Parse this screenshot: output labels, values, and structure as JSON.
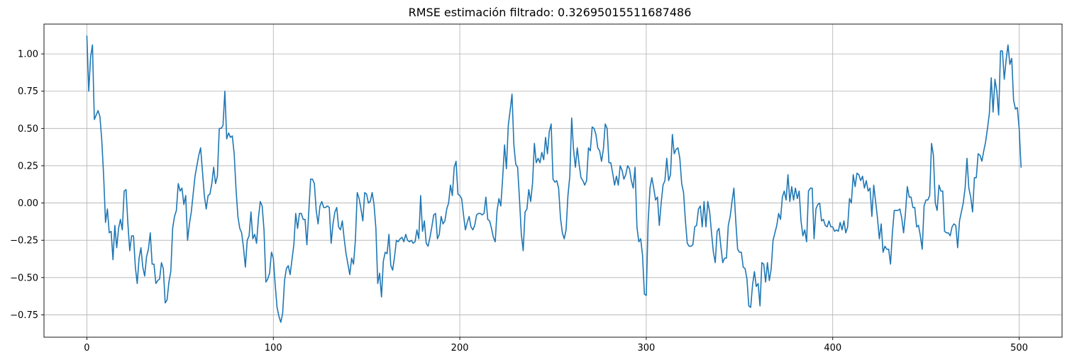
{
  "chart_data": {
    "type": "line",
    "title": "RMSE estimación filtrado: 0.32695015511687486",
    "xlabel": "",
    "ylabel": "",
    "xlim": [
      -23,
      523
    ],
    "ylim": [
      -0.9,
      1.2
    ],
    "x_ticks": [
      0,
      100,
      200,
      300,
      400,
      500
    ],
    "x_tick_labels": [
      "0",
      "100",
      "200",
      "300",
      "400",
      "500"
    ],
    "y_ticks": [
      1.0,
      0.75,
      0.5,
      0.25,
      0.0,
      -0.25,
      -0.5,
      -0.75
    ],
    "y_tick_labels": [
      "1.00",
      "0.75",
      "0.50",
      "0.25",
      "0.00",
      "−0.25",
      "−0.50",
      "−0.75"
    ],
    "grid": true,
    "line_color": "#1f77b4",
    "x_start": 0,
    "x_step": 1,
    "series": [
      {
        "values": [
          1.12,
          0.75,
          0.98,
          1.06,
          0.56,
          0.59,
          0.62,
          0.58,
          0.42,
          0.18,
          -0.13,
          -0.04,
          -0.2,
          -0.19,
          -0.38,
          -0.15,
          -0.3,
          -0.17,
          -0.11,
          -0.18,
          0.08,
          0.09,
          -0.14,
          -0.32,
          -0.22,
          -0.22,
          -0.43,
          -0.54,
          -0.37,
          -0.3,
          -0.43,
          -0.49,
          -0.36,
          -0.31,
          -0.2,
          -0.41,
          -0.41,
          -0.54,
          -0.52,
          -0.51,
          -0.4,
          -0.44,
          -0.67,
          -0.65,
          -0.53,
          -0.46,
          -0.17,
          -0.09,
          -0.05,
          0.13,
          0.08,
          0.1,
          -0.01,
          0.05,
          -0.25,
          -0.14,
          -0.06,
          0.06,
          0.18,
          0.25,
          0.32,
          0.37,
          0.21,
          0.05,
          -0.04,
          0.05,
          0.06,
          0.13,
          0.24,
          0.13,
          0.18,
          0.5,
          0.5,
          0.52,
          0.75,
          0.43,
          0.47,
          0.44,
          0.45,
          0.33,
          0.09,
          -0.09,
          -0.17,
          -0.2,
          -0.3,
          -0.43,
          -0.25,
          -0.22,
          -0.06,
          -0.24,
          -0.21,
          -0.27,
          -0.1,
          0.01,
          -0.02,
          -0.18,
          -0.53,
          -0.51,
          -0.47,
          -0.33,
          -0.37,
          -0.55,
          -0.7,
          -0.76,
          -0.8,
          -0.74,
          -0.52,
          -0.44,
          -0.42,
          -0.48,
          -0.38,
          -0.28,
          -0.07,
          -0.17,
          -0.07,
          -0.07,
          -0.11,
          -0.11,
          -0.28,
          -0.06,
          0.16,
          0.16,
          0.13,
          -0.05,
          -0.14,
          -0.02,
          0.01,
          -0.03,
          -0.03,
          -0.02,
          -0.03,
          -0.27,
          -0.14,
          -0.06,
          -0.03,
          -0.16,
          -0.18,
          -0.12,
          -0.24,
          -0.34,
          -0.41,
          -0.48,
          -0.37,
          -0.41,
          -0.25,
          0.07,
          0.03,
          -0.04,
          -0.12,
          0.07,
          0.06,
          0.0,
          0.01,
          0.07,
          -0.01,
          -0.17,
          -0.54,
          -0.47,
          -0.63,
          -0.39,
          -0.33,
          -0.34,
          -0.21,
          -0.42,
          -0.45,
          -0.36,
          -0.25,
          -0.26,
          -0.24,
          -0.23,
          -0.26,
          -0.21,
          -0.25,
          -0.26,
          -0.25,
          -0.27,
          -0.26,
          -0.18,
          -0.24,
          0.05,
          -0.19,
          -0.12,
          -0.27,
          -0.29,
          -0.23,
          -0.16,
          -0.08,
          -0.07,
          -0.24,
          -0.21,
          -0.09,
          -0.14,
          -0.12,
          -0.04,
          0.0,
          0.12,
          0.05,
          0.24,
          0.28,
          0.06,
          0.05,
          0.03,
          -0.08,
          -0.18,
          -0.13,
          -0.09,
          -0.16,
          -0.18,
          -0.15,
          -0.08,
          -0.07,
          -0.07,
          -0.08,
          -0.07,
          0.04,
          -0.11,
          -0.12,
          -0.17,
          -0.23,
          -0.26,
          -0.05,
          0.03,
          -0.02,
          0.17,
          0.39,
          0.23,
          0.52,
          0.62,
          0.73,
          0.39,
          0.26,
          0.24,
          0.03,
          -0.21,
          -0.32,
          -0.06,
          -0.04,
          0.09,
          0.01,
          0.13,
          0.4,
          0.27,
          0.3,
          0.27,
          0.34,
          0.29,
          0.44,
          0.33,
          0.48,
          0.53,
          0.16,
          0.14,
          0.15,
          0.1,
          -0.1,
          -0.2,
          -0.24,
          -0.18,
          0.05,
          0.18,
          0.57,
          0.36,
          0.24,
          0.37,
          0.26,
          0.17,
          0.15,
          0.12,
          0.15,
          0.37,
          0.35,
          0.51,
          0.5,
          0.46,
          0.37,
          0.35,
          0.28,
          0.36,
          0.53,
          0.5,
          0.27,
          0.27,
          0.2,
          0.12,
          0.18,
          0.12,
          0.25,
          0.22,
          0.16,
          0.19,
          0.25,
          0.23,
          0.15,
          0.1,
          0.24,
          -0.16,
          -0.26,
          -0.24,
          -0.35,
          -0.61,
          -0.62,
          -0.13,
          0.1,
          0.17,
          0.1,
          0.02,
          0.04,
          -0.15,
          0.0,
          0.12,
          0.15,
          0.3,
          0.15,
          0.19,
          0.46,
          0.33,
          0.36,
          0.37,
          0.3,
          0.13,
          0.07,
          -0.12,
          -0.27,
          -0.29,
          -0.29,
          -0.28,
          -0.16,
          -0.15,
          -0.04,
          -0.02,
          -0.16,
          0.01,
          -0.16,
          0.01,
          -0.06,
          -0.2,
          -0.33,
          -0.4,
          -0.19,
          -0.17,
          -0.29,
          -0.4,
          -0.37,
          -0.37,
          -0.15,
          -0.09,
          0.01,
          0.1,
          -0.12,
          -0.31,
          -0.33,
          -0.33,
          -0.43,
          -0.44,
          -0.51,
          -0.69,
          -0.7,
          -0.55,
          -0.46,
          -0.56,
          -0.54,
          -0.69,
          -0.4,
          -0.41,
          -0.53,
          -0.4,
          -0.52,
          -0.44,
          -0.25,
          -0.2,
          -0.15,
          -0.07,
          -0.11,
          0.04,
          0.08,
          0.02,
          0.19,
          0.01,
          0.11,
          0.02,
          0.1,
          0.03,
          0.08,
          -0.12,
          -0.22,
          -0.18,
          -0.26,
          0.08,
          0.1,
          0.1,
          -0.24,
          -0.04,
          -0.01,
          0.0,
          -0.12,
          -0.11,
          -0.15,
          -0.16,
          -0.12,
          -0.16,
          -0.16,
          -0.19,
          -0.18,
          -0.19,
          -0.13,
          -0.18,
          -0.12,
          -0.2,
          -0.16,
          0.03,
          0.0,
          0.19,
          0.11,
          0.2,
          0.19,
          0.15,
          0.18,
          0.1,
          0.15,
          0.08,
          0.1,
          -0.09,
          0.12,
          0.01,
          -0.1,
          -0.24,
          -0.14,
          -0.33,
          -0.29,
          -0.31,
          -0.31,
          -0.41,
          -0.2,
          -0.05,
          -0.05,
          -0.05,
          -0.04,
          -0.1,
          -0.2,
          -0.07,
          0.11,
          0.04,
          0.04,
          -0.03,
          -0.03,
          -0.16,
          -0.15,
          -0.22,
          -0.31,
          -0.02,
          0.02,
          0.02,
          0.05,
          0.4,
          0.32,
          0.0,
          -0.05,
          0.12,
          0.08,
          0.08,
          -0.19,
          -0.2,
          -0.2,
          -0.22,
          -0.16,
          -0.14,
          -0.15,
          -0.3,
          -0.12,
          -0.06,
          0.0,
          0.1,
          0.3,
          0.1,
          0.04,
          -0.06,
          0.17,
          0.17,
          0.33,
          0.32,
          0.28,
          0.35,
          0.41,
          0.5,
          0.6,
          0.84,
          0.61,
          0.83,
          0.75,
          0.59,
          1.02,
          1.02,
          0.83,
          0.96,
          1.06,
          0.93,
          0.97,
          0.69,
          0.63,
          0.64,
          0.5,
          0.24
        ]
      }
    ]
  }
}
